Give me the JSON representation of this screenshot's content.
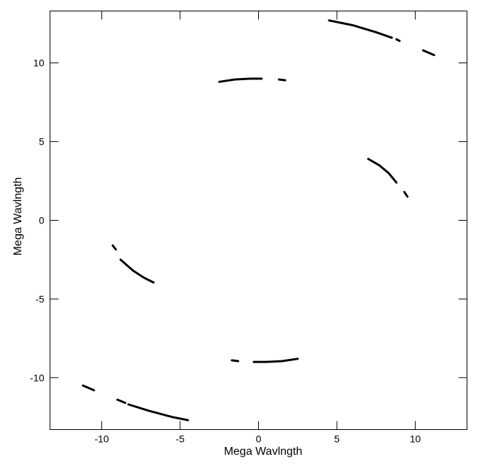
{
  "chart_data": {
    "type": "scatter",
    "title": "",
    "xlabel": "Mega Wavlngth",
    "ylabel": "Mega Wavlngth",
    "xlim": [
      -13.3,
      13.3
    ],
    "ylim": [
      -13.3,
      13.3
    ],
    "xticks": [
      -10,
      -5,
      0,
      5,
      10
    ],
    "yticks": [
      -10,
      -5,
      0,
      5,
      10
    ],
    "x_tick_labels": [
      "-10",
      "-5",
      "0",
      "5",
      "10"
    ],
    "y_tick_labels": [
      "-10",
      "-5",
      "0",
      "5",
      "10"
    ],
    "grid": false,
    "legend": "none",
    "series": [
      {
        "points": [
          [
            4.5,
            12.7
          ],
          [
            6.0,
            12.4
          ],
          [
            7.5,
            11.95
          ],
          [
            8.5,
            11.6
          ]
        ]
      },
      {
        "points": [
          [
            8.8,
            11.5
          ],
          [
            9.0,
            11.4
          ]
        ]
      },
      {
        "points": [
          [
            10.5,
            10.8
          ],
          [
            11.2,
            10.5
          ]
        ]
      },
      {
        "points": [
          [
            -2.5,
            8.8
          ],
          [
            -1.5,
            8.95
          ],
          [
            -0.5,
            9.0
          ],
          [
            0.2,
            9.0
          ]
        ]
      },
      {
        "points": [
          [
            1.3,
            8.95
          ],
          [
            1.7,
            8.9
          ]
        ]
      },
      {
        "points": [
          [
            7.0,
            3.9
          ],
          [
            7.7,
            3.5
          ],
          [
            8.3,
            3.0
          ],
          [
            8.8,
            2.4
          ]
        ]
      },
      {
        "points": [
          [
            9.3,
            1.8
          ],
          [
            9.5,
            1.5
          ]
        ]
      },
      {
        "points": [
          [
            -9.3,
            -1.6
          ],
          [
            -9.1,
            -1.85
          ]
        ]
      },
      {
        "points": [
          [
            -8.8,
            -2.5
          ],
          [
            -8.0,
            -3.2
          ],
          [
            -7.3,
            -3.65
          ],
          [
            -6.7,
            -3.95
          ]
        ]
      },
      {
        "points": [
          [
            -1.7,
            -8.9
          ],
          [
            -1.3,
            -8.95
          ]
        ]
      },
      {
        "points": [
          [
            -0.3,
            -9.0
          ],
          [
            0.5,
            -9.0
          ],
          [
            1.5,
            -8.95
          ],
          [
            2.5,
            -8.8
          ]
        ]
      },
      {
        "points": [
          [
            -11.2,
            -10.5
          ],
          [
            -10.5,
            -10.8
          ]
        ]
      },
      {
        "points": [
          [
            -9.0,
            -11.4
          ],
          [
            -8.5,
            -11.6
          ]
        ]
      },
      {
        "points": [
          [
            -8.3,
            -11.7
          ],
          [
            -7.0,
            -12.1
          ],
          [
            -5.5,
            -12.5
          ],
          [
            -4.5,
            -12.7
          ]
        ]
      }
    ]
  }
}
